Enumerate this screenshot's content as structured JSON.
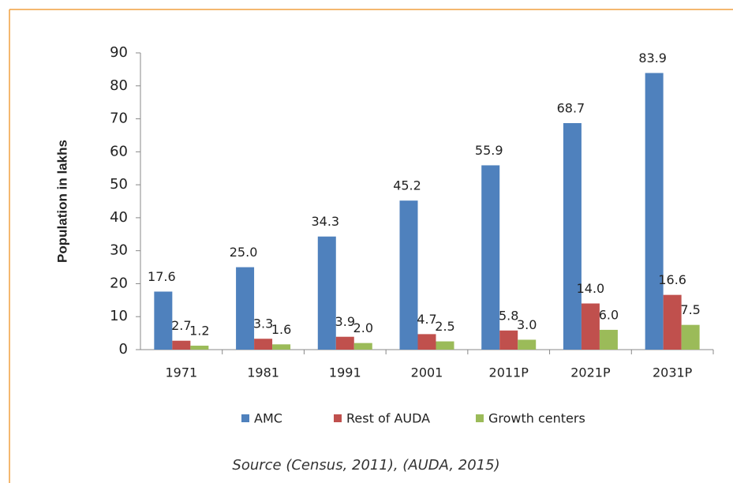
{
  "chart_data": {
    "type": "bar",
    "y_label": "Population in lakhs",
    "source": "Source (Census, 2011), (AUDA, 2015)",
    "categories": [
      "1971",
      "1981",
      "1991",
      "2001",
      "2011P",
      "2021P",
      "2031P"
    ],
    "series": [
      {
        "name": "AMC",
        "color": "#4f81bd",
        "values": [
          17.6,
          25,
          34.3,
          45.2,
          55.9,
          68.7,
          83.9
        ],
        "value_labels": [
          "17.6",
          "25.0",
          "34.3",
          "45.2",
          "55.9",
          "68.7",
          "83.9"
        ]
      },
      {
        "name": "Rest of AUDA",
        "color": "#c0504d",
        "values": [
          2.7,
          3.3,
          3.9,
          4.7,
          5.8,
          14,
          16.6
        ],
        "value_labels": [
          "2.7",
          "3.3",
          "3.9",
          "4.7",
          "5.8",
          "14.0",
          "16.6"
        ]
      },
      {
        "name": "Growth centers",
        "color": "#9bbb59",
        "values": [
          1.2,
          1.6,
          2,
          2.5,
          3,
          6,
          7.5
        ],
        "value_labels": [
          "1.2",
          "1.6",
          "2.0",
          "2.5",
          "3.0",
          "6.0",
          "7.5"
        ]
      }
    ],
    "ylim": [
      0,
      90
    ],
    "yticks": [
      0,
      10,
      20,
      30,
      40,
      50,
      60,
      70,
      80,
      90
    ],
    "grid": false,
    "legend": "bottom"
  }
}
